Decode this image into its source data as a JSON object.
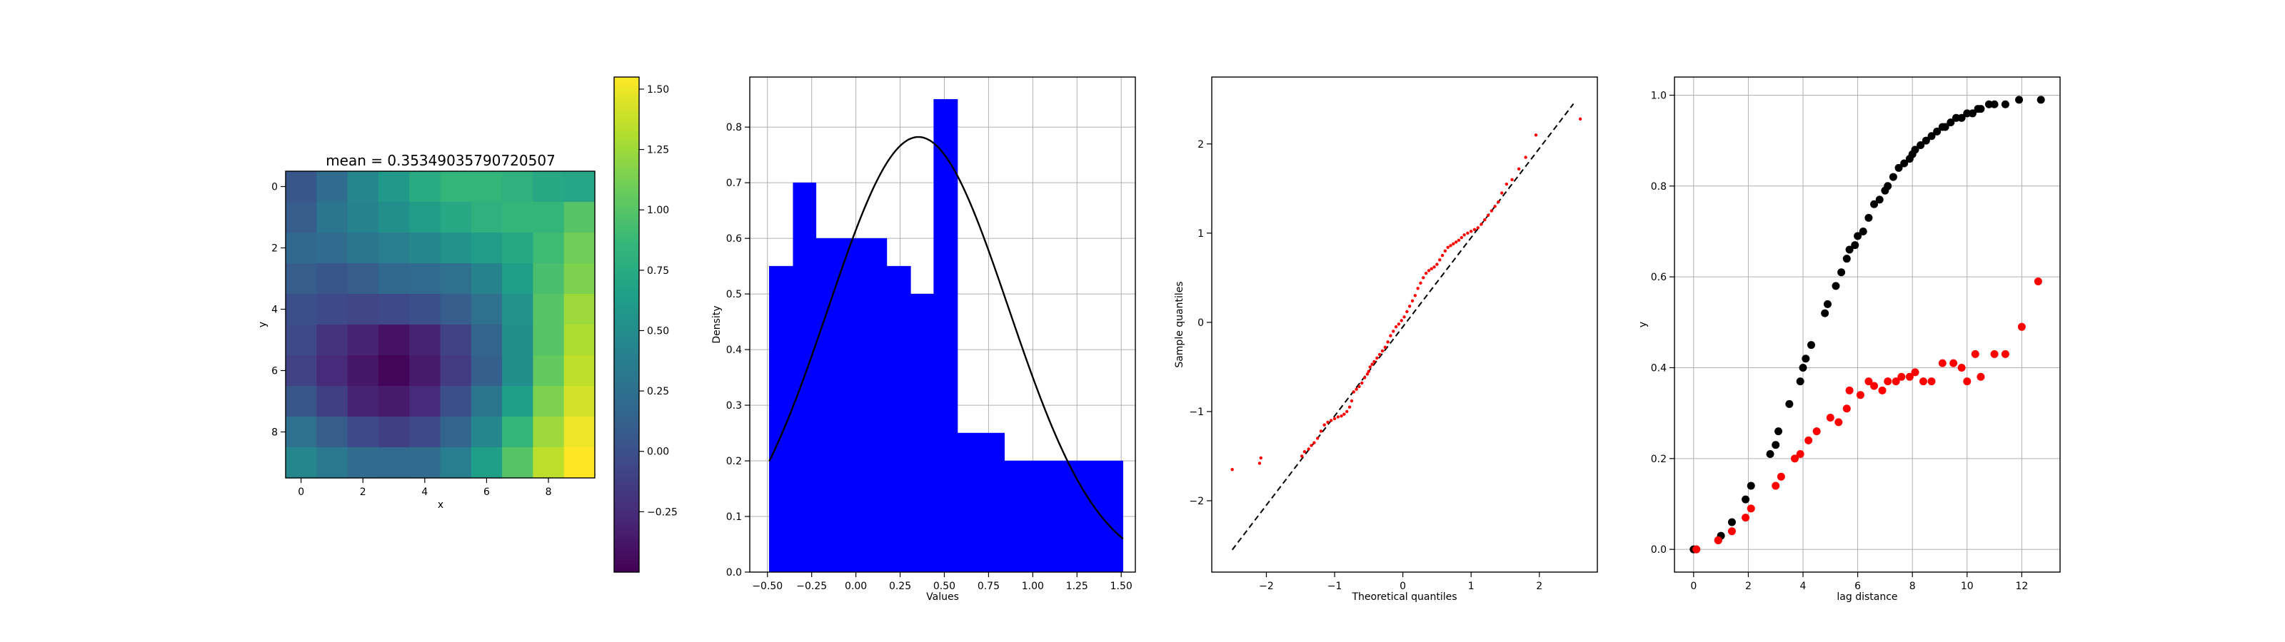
{
  "chart_data": [
    {
      "type": "heatmap",
      "title": "mean = 0.35349035790720507",
      "xlabel": "x",
      "ylabel": "y",
      "xlim": [
        -0.5,
        9.5
      ],
      "ylim": [
        9.5,
        -0.5
      ],
      "xticks": [
        0,
        2,
        4,
        6,
        8
      ],
      "yticks": [
        0,
        2,
        4,
        6,
        8
      ],
      "colormap": "viridis",
      "color_range": [
        -0.5,
        1.55
      ],
      "colorbar_ticks": [
        -0.25,
        0.0,
        0.25,
        0.5,
        0.75,
        1.0,
        1.25,
        1.5
      ],
      "colorbar_ticklabels": [
        "−0.25",
        "0.00",
        "0.25",
        "0.50",
        "0.75",
        "1.00",
        "1.25",
        "1.50"
      ],
      "values": [
        [
          0.05,
          0.22,
          0.45,
          0.6,
          0.75,
          0.85,
          0.85,
          0.8,
          0.72,
          0.7
        ],
        [
          0.1,
          0.3,
          0.42,
          0.52,
          0.62,
          0.72,
          0.8,
          0.85,
          0.85,
          1.0
        ],
        [
          0.18,
          0.22,
          0.3,
          0.38,
          0.45,
          0.55,
          0.62,
          0.72,
          0.9,
          1.1
        ],
        [
          0.1,
          0.05,
          0.1,
          0.18,
          0.2,
          0.25,
          0.42,
          0.65,
          0.95,
          1.15
        ],
        [
          0.0,
          -0.05,
          -0.08,
          -0.05,
          0.0,
          0.1,
          0.25,
          0.55,
          1.0,
          1.25
        ],
        [
          -0.05,
          -0.2,
          -0.3,
          -0.4,
          -0.3,
          -0.1,
          0.15,
          0.5,
          1.0,
          1.3
        ],
        [
          -0.1,
          -0.25,
          -0.38,
          -0.48,
          -0.35,
          -0.15,
          0.12,
          0.5,
          1.05,
          1.35
        ],
        [
          0.05,
          -0.12,
          -0.3,
          -0.35,
          -0.25,
          0.0,
          0.3,
          0.65,
          1.15,
          1.42
        ],
        [
          0.25,
          0.1,
          -0.05,
          -0.12,
          -0.05,
          0.15,
          0.45,
          0.85,
          1.25,
          1.5
        ],
        [
          0.45,
          0.32,
          0.22,
          0.2,
          0.22,
          0.38,
          0.65,
          1.0,
          1.35,
          1.55
        ]
      ]
    },
    {
      "type": "bar",
      "subtype": "histogram-with-normal-pdf",
      "xlabel": "Values",
      "ylabel": "Density",
      "xlim": [
        -0.6,
        1.58
      ],
      "ylim": [
        0,
        0.89
      ],
      "xticks": [
        -0.5,
        -0.25,
        0.0,
        0.25,
        0.5,
        0.75,
        1.0,
        1.25,
        1.5
      ],
      "xticklabels": [
        "−0.50",
        "−0.25",
        "0.00",
        "0.25",
        "0.50",
        "0.75",
        "1.00",
        "1.25",
        "1.50"
      ],
      "yticks": [
        0.0,
        0.1,
        0.2,
        0.3,
        0.4,
        0.5,
        0.6,
        0.7,
        0.8
      ],
      "yticklabels": [
        "0.0",
        "0.1",
        "0.2",
        "0.3",
        "0.4",
        "0.5",
        "0.6",
        "0.7",
        "0.8"
      ],
      "grid": true,
      "bar_color": "#0000ff",
      "bin_edges": [
        -0.49,
        -0.355,
        -0.225,
        -0.09,
        0.04,
        0.175,
        0.31,
        0.44,
        0.575,
        0.71,
        0.84,
        0.975,
        1.11,
        1.24,
        1.375,
        1.51
      ],
      "densities": [
        0.55,
        0.7,
        0.6,
        0.6,
        0.6,
        0.55,
        0.5,
        0.85,
        0.25,
        0.25,
        0.2,
        0.2,
        0.2,
        0.2,
        0.2
      ],
      "pdf": {
        "mean": 0.3535,
        "std": 0.51,
        "color": "#000000"
      }
    },
    {
      "type": "scatter",
      "subtype": "qq-plot",
      "xlabel": "Theoretical quantiles",
      "ylabel": "Sample quantiles",
      "xlim": [
        -2.8,
        2.85
      ],
      "ylim": [
        -2.8,
        2.75
      ],
      "xticks": [
        -2,
        -1,
        0,
        1,
        2
      ],
      "xticklabels": [
        "−2",
        "−1",
        "0",
        "1",
        "2"
      ],
      "yticks": [
        -2,
        -1,
        0,
        1,
        2
      ],
      "yticklabels": [
        "−2",
        "−1",
        "0",
        "1",
        "2"
      ],
      "point_color": "#ff0000",
      "reference_line": {
        "x": [
          -2.5,
          2.5
        ],
        "y": [
          -2.55,
          2.45
        ],
        "style": "dashed",
        "color": "#000000"
      },
      "x": [
        -2.5,
        -2.1,
        -2.08,
        -1.48,
        -1.44,
        -1.38,
        -1.34,
        -1.3,
        -1.25,
        -1.2,
        -1.15,
        -1.1,
        -1.05,
        -1.0,
        -0.95,
        -0.9,
        -0.86,
        -0.82,
        -0.78,
        -0.75,
        -0.72,
        -0.68,
        -0.64,
        -0.6,
        -0.56,
        -0.52,
        -0.5,
        -0.48,
        -0.45,
        -0.42,
        -0.38,
        -0.34,
        -0.3,
        -0.26,
        -0.22,
        -0.18,
        -0.14,
        -0.1,
        -0.06,
        -0.02,
        0.02,
        0.06,
        0.1,
        0.14,
        0.18,
        0.22,
        0.26,
        0.3,
        0.34,
        0.38,
        0.42,
        0.46,
        0.5,
        0.54,
        0.58,
        0.62,
        0.66,
        0.7,
        0.74,
        0.78,
        0.82,
        0.86,
        0.9,
        0.95,
        1.0,
        1.05,
        1.1,
        1.15,
        1.2,
        1.25,
        1.3,
        1.35,
        1.4,
        1.45,
        1.52,
        1.6,
        1.7,
        1.8,
        1.95,
        2.6
      ],
      "y": [
        -1.65,
        -1.58,
        -1.52,
        -1.5,
        -1.45,
        -1.42,
        -1.38,
        -1.35,
        -1.3,
        -1.22,
        -1.15,
        -1.12,
        -1.1,
        -1.08,
        -1.06,
        -1.05,
        -1.03,
        -1.0,
        -0.95,
        -0.88,
        -0.78,
        -0.75,
        -0.72,
        -0.68,
        -0.62,
        -0.58,
        -0.55,
        -0.5,
        -0.47,
        -0.44,
        -0.4,
        -0.36,
        -0.32,
        -0.28,
        -0.22,
        -0.15,
        -0.1,
        -0.05,
        -0.02,
        0.02,
        0.06,
        0.12,
        0.18,
        0.24,
        0.3,
        0.38,
        0.44,
        0.5,
        0.55,
        0.58,
        0.6,
        0.62,
        0.65,
        0.7,
        0.75,
        0.8,
        0.84,
        0.86,
        0.88,
        0.9,
        0.92,
        0.95,
        0.98,
        1.0,
        1.02,
        1.04,
        1.06,
        1.1,
        1.15,
        1.2,
        1.25,
        1.3,
        1.35,
        1.45,
        1.55,
        1.6,
        1.72,
        1.85,
        2.1,
        2.28
      ]
    },
    {
      "type": "scatter",
      "subtype": "variogram",
      "xlabel": "lag distance",
      "ylabel": "y",
      "xlim": [
        -0.7,
        13.4
      ],
      "ylim": [
        -0.05,
        1.04
      ],
      "xticks": [
        0,
        2,
        4,
        6,
        8,
        10,
        12
      ],
      "xticklabels": [
        "0",
        "2",
        "4",
        "6",
        "8",
        "10",
        "12"
      ],
      "yticks": [
        0.0,
        0.2,
        0.4,
        0.6,
        0.8,
        1.0
      ],
      "yticklabels": [
        "0.0",
        "0.2",
        "0.4",
        "0.6",
        "0.8",
        "1.0"
      ],
      "grid": true,
      "series": [
        {
          "color": "#000000",
          "x": [
            0.0,
            0.1,
            0.9,
            1.0,
            1.4,
            1.9,
            2.1,
            2.8,
            3.0,
            3.1,
            3.5,
            3.9,
            4.0,
            4.1,
            4.3,
            4.8,
            4.9,
            5.2,
            5.4,
            5.6,
            5.7,
            5.9,
            6.0,
            6.2,
            6.4,
            6.6,
            6.8,
            7.0,
            7.1,
            7.3,
            7.5,
            7.7,
            7.9,
            8.0,
            8.1,
            8.3,
            8.5,
            8.7,
            8.9,
            9.1,
            9.2,
            9.4,
            9.6,
            9.8,
            10.0,
            10.2,
            10.4,
            10.5,
            10.8,
            11.0,
            11.4,
            11.9,
            12.7
          ],
          "y": [
            0.0,
            0.0,
            0.02,
            0.03,
            0.06,
            0.11,
            0.14,
            0.21,
            0.23,
            0.26,
            0.32,
            0.37,
            0.4,
            0.42,
            0.45,
            0.52,
            0.54,
            0.58,
            0.61,
            0.64,
            0.66,
            0.67,
            0.69,
            0.7,
            0.73,
            0.76,
            0.77,
            0.79,
            0.8,
            0.82,
            0.84,
            0.85,
            0.86,
            0.87,
            0.88,
            0.89,
            0.9,
            0.91,
            0.92,
            0.93,
            0.93,
            0.94,
            0.95,
            0.95,
            0.96,
            0.96,
            0.97,
            0.97,
            0.98,
            0.98,
            0.98,
            0.99,
            0.99
          ]
        },
        {
          "color": "#ff0000",
          "x": [
            0.1,
            0.9,
            1.4,
            1.9,
            2.1,
            3.0,
            3.2,
            3.7,
            3.9,
            4.2,
            4.5,
            5.0,
            5.3,
            5.6,
            5.7,
            6.1,
            6.4,
            6.6,
            6.9,
            7.1,
            7.4,
            7.6,
            7.9,
            8.1,
            8.4,
            8.7,
            9.1,
            9.5,
            9.8,
            10.0,
            10.3,
            10.5,
            11.0,
            11.4,
            12.0,
            12.6
          ],
          "y": [
            0.0,
            0.02,
            0.04,
            0.07,
            0.09,
            0.14,
            0.16,
            0.2,
            0.21,
            0.24,
            0.26,
            0.29,
            0.28,
            0.31,
            0.35,
            0.34,
            0.37,
            0.36,
            0.35,
            0.37,
            0.37,
            0.38,
            0.38,
            0.39,
            0.37,
            0.37,
            0.41,
            0.41,
            0.4,
            0.37,
            0.43,
            0.38,
            0.43,
            0.43,
            0.49,
            0.59
          ]
        }
      ]
    }
  ]
}
